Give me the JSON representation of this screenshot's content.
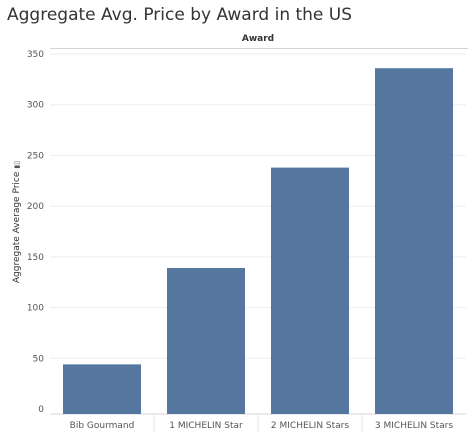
{
  "chart_data": {
    "type": "bar",
    "title": "Aggregate Avg. Price by Award in the US",
    "column_header": "Award",
    "ylabel": "Aggregate Average Price",
    "xlabel": "",
    "categories": [
      "Bib Gourmand",
      "1 MICHELIN Star",
      "2 MICHELIN Stars",
      "3 MICHELIN Stars"
    ],
    "values": [
      44,
      139,
      238,
      336
    ],
    "ylim": [
      0,
      350
    ],
    "yticks": [
      0,
      50,
      100,
      150,
      200,
      250,
      300,
      350
    ],
    "grid": true,
    "bar_color": "#55779f"
  }
}
